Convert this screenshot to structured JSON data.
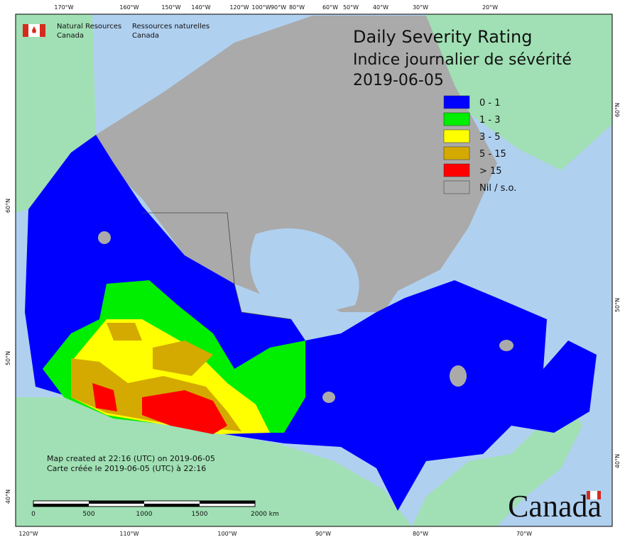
{
  "header": {
    "org_en": [
      "Natural Resources",
      "Canada"
    ],
    "org_fr": [
      "Ressources naturelles",
      "Canada"
    ]
  },
  "title": {
    "en": "Daily Severity Rating",
    "fr": "Indice journalier de sévérité",
    "date": "2019-06-05"
  },
  "legend": [
    {
      "label": "0 - 1",
      "color": "#0000ff"
    },
    {
      "label": "1 - 3",
      "color": "#00ee00"
    },
    {
      "label": "3 - 5",
      "color": "#ffff00"
    },
    {
      "label": "5 - 15",
      "color": "#d4aa00"
    },
    {
      "label": "> 15",
      "color": "#ff0000"
    },
    {
      "label": "Nil / s.o.",
      "color": "#aaaaaa"
    }
  ],
  "graticule": {
    "top": [
      "170°W",
      "160°W",
      "150°W",
      "140°W",
      "120°W",
      "100°W",
      "90°W",
      "80°W",
      "60°W",
      "50°W",
      "40°W",
      "30°W",
      "20°W"
    ],
    "bottom": [
      "120°W",
      "110°W",
      "100°W",
      "90°W",
      "80°W",
      "70°W"
    ],
    "left": [
      "60°N",
      "50°N",
      "40°N"
    ],
    "right": [
      "60°N",
      "50°N",
      "40°N"
    ]
  },
  "notes": [
    "Map created at 22:16 (UTC) on 2019-06-05",
    "Carte créée le 2019-06-05 (UTC) à 22:16"
  ],
  "scale_bar": [
    "0",
    "500",
    "1000",
    "1500",
    "2000 km"
  ],
  "wordmark": "Canada"
}
